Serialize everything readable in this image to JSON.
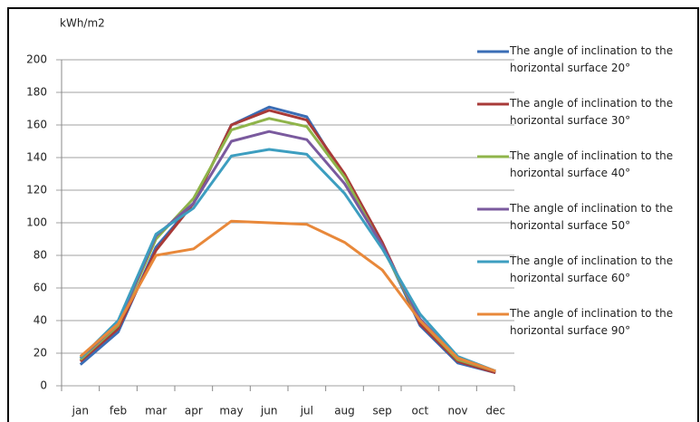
{
  "chart_data": {
    "type": "line",
    "y_label": "kWh/m2",
    "categories": [
      "jan",
      "feb",
      "mar",
      "apr",
      "may",
      "jun",
      "jul",
      "aug",
      "sep",
      "oct",
      "nov",
      "dec"
    ],
    "series": [
      {
        "name": "The angle of inclination to the horizontal surface 20°",
        "color": "#3a6db5",
        "values": [
          13,
          33,
          85,
          112,
          160,
          171,
          165,
          128,
          86,
          37,
          14,
          8
        ]
      },
      {
        "name": "The angle of inclination to the horizontal surface 30°",
        "color": "#a83a38",
        "values": [
          15,
          35,
          83,
          112,
          160,
          169,
          163,
          130,
          88,
          38,
          15,
          8
        ]
      },
      {
        "name": "The angle of inclination to the horizontal surface 40°",
        "color": "#8fb44a",
        "values": [
          16,
          37,
          90,
          115,
          157,
          164,
          159,
          128,
          85,
          40,
          16,
          9
        ]
      },
      {
        "name": "The angle of inclination to the horizontal surface 50°",
        "color": "#7a5a9e",
        "values": [
          17,
          38,
          92,
          112,
          150,
          156,
          151,
          124,
          86,
          41,
          17,
          9
        ]
      },
      {
        "name": "The angle of inclination to the horizontal surface 60°",
        "color": "#3d9ec0",
        "values": [
          17,
          40,
          93,
          109,
          141,
          145,
          142,
          118,
          84,
          44,
          18,
          9
        ]
      },
      {
        "name": "The angle of inclination to the horizontal surface 90°",
        "color": "#e8883a",
        "values": [
          18,
          38,
          80,
          84,
          101,
          100,
          99,
          88,
          71,
          40,
          17,
          9
        ]
      }
    ],
    "ylim": [
      0,
      200
    ],
    "yticks": [
      0,
      20,
      40,
      60,
      80,
      100,
      120,
      140,
      160,
      180,
      200
    ],
    "grid": true,
    "legend": "right"
  }
}
